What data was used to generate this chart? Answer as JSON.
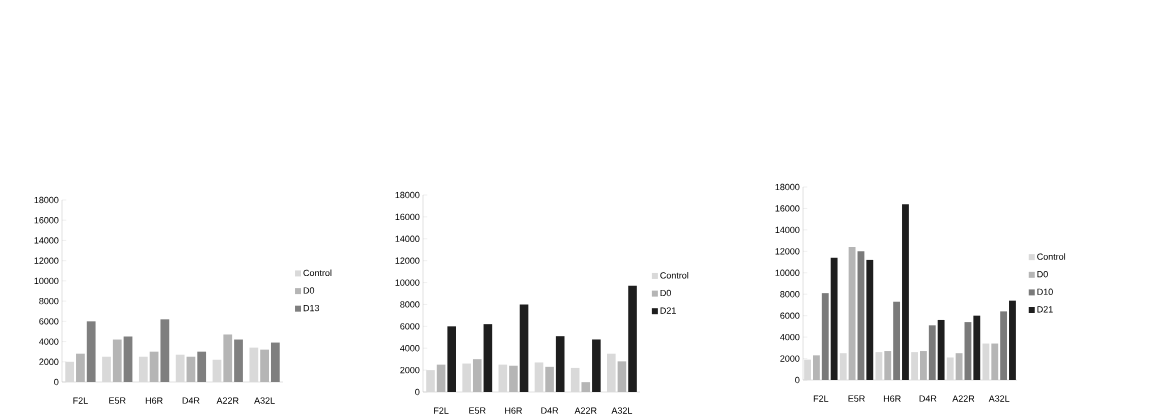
{
  "chart_data": [
    {
      "type": "bar",
      "categories": [
        "F2L",
        "E5R",
        "H6R",
        "D4R",
        "A22R",
        "A32L"
      ],
      "ylim": [
        0,
        18000
      ],
      "yticks": [
        0,
        2000,
        4000,
        6000,
        8000,
        10000,
        12000,
        14000,
        16000,
        18000
      ],
      "legend": "right",
      "series": [
        {
          "name": "Control",
          "color": "#d9d9d9",
          "values": [
            2000,
            2500,
            2500,
            2700,
            2200,
            3400
          ]
        },
        {
          "name": "D0",
          "color": "#b5b5b5",
          "values": [
            2800,
            4200,
            3000,
            2500,
            4700,
            3200
          ]
        },
        {
          "name": "D13",
          "color": "#7f7f7f",
          "values": [
            6000,
            4500,
            6200,
            3000,
            4200,
            3900
          ]
        }
      ]
    },
    {
      "type": "bar",
      "categories": [
        "F2L",
        "E5R",
        "H6R",
        "D4R",
        "A22R",
        "A32L"
      ],
      "ylim": [
        0,
        18000
      ],
      "yticks": [
        0,
        2000,
        4000,
        6000,
        8000,
        10000,
        12000,
        14000,
        16000,
        18000
      ],
      "legend": "right",
      "series": [
        {
          "name": "Control",
          "color": "#d9d9d9",
          "values": [
            2000,
            2600,
            2500,
            2700,
            2200,
            3500
          ]
        },
        {
          "name": "D0",
          "color": "#b5b5b5",
          "values": [
            2500,
            3000,
            2400,
            2300,
            900,
            2800
          ]
        },
        {
          "name": "D21",
          "color": "#1e1e1e",
          "values": [
            6000,
            6200,
            8000,
            5100,
            4800,
            9700
          ]
        }
      ]
    },
    {
      "type": "bar",
      "categories": [
        "F2L",
        "E5R",
        "H6R",
        "D4R",
        "A22R",
        "A32L"
      ],
      "ylim": [
        0,
        18000
      ],
      "yticks": [
        0,
        2000,
        4000,
        6000,
        8000,
        10000,
        12000,
        14000,
        16000,
        18000
      ],
      "legend": "right",
      "series": [
        {
          "name": "Control",
          "color": "#d9d9d9",
          "values": [
            1900,
            2500,
            2600,
            2600,
            2100,
            3400
          ]
        },
        {
          "name": "D0",
          "color": "#b5b5b5",
          "values": [
            2300,
            12400,
            2700,
            2700,
            2500,
            3400
          ]
        },
        {
          "name": "D10",
          "color": "#7a7a7a",
          "values": [
            8100,
            12000,
            7300,
            5100,
            5400,
            6400
          ]
        },
        {
          "name": "D21",
          "color": "#1e1e1e",
          "values": [
            11400,
            11200,
            16400,
            5600,
            6000,
            7400
          ]
        }
      ]
    }
  ]
}
